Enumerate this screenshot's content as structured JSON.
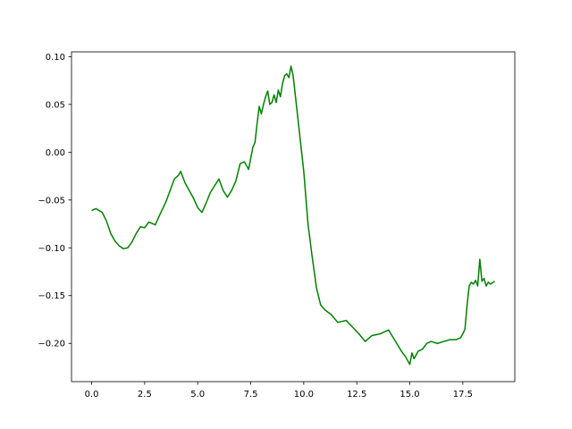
{
  "chart_data": {
    "type": "line",
    "title": "",
    "xlabel": "",
    "ylabel": "",
    "xlim": [
      -0.95,
      19.95
    ],
    "ylim": [
      -0.24,
      0.105
    ],
    "grid": false,
    "x_ticks": [
      {
        "value": 0.0,
        "label": "0.0"
      },
      {
        "value": 2.5,
        "label": "2.5"
      },
      {
        "value": 5.0,
        "label": "5.0"
      },
      {
        "value": 7.5,
        "label": "7.5"
      },
      {
        "value": 10.0,
        "label": "10.0"
      },
      {
        "value": 12.5,
        "label": "12.5"
      },
      {
        "value": 15.0,
        "label": "15.0"
      },
      {
        "value": 17.5,
        "label": "17.5"
      }
    ],
    "y_ticks": [
      {
        "value": 0.1,
        "label": "0.10"
      },
      {
        "value": 0.05,
        "label": "0.05"
      },
      {
        "value": 0.0,
        "label": "0.00"
      },
      {
        "value": -0.05,
        "label": "−0.05"
      },
      {
        "value": -0.1,
        "label": "−0.10"
      },
      {
        "value": -0.15,
        "label": "−0.15"
      },
      {
        "value": -0.2,
        "label": "−0.20"
      }
    ],
    "series": [
      {
        "color": "#008000",
        "x": [
          0.0,
          0.2,
          0.5,
          0.7,
          0.9,
          1.1,
          1.3,
          1.5,
          1.7,
          1.9,
          2.1,
          2.3,
          2.5,
          2.7,
          3.0,
          3.2,
          3.5,
          3.7,
          3.9,
          4.1,
          4.2,
          4.4,
          4.6,
          4.8,
          5.0,
          5.2,
          5.4,
          5.6,
          5.8,
          6.0,
          6.2,
          6.4,
          6.6,
          6.8,
          7.0,
          7.2,
          7.4,
          7.6,
          7.7,
          7.8,
          7.9,
          8.0,
          8.1,
          8.2,
          8.3,
          8.4,
          8.5,
          8.6,
          8.7,
          8.8,
          8.9,
          9.0,
          9.1,
          9.2,
          9.3,
          9.4,
          9.5,
          9.6,
          9.8,
          10.0,
          10.2,
          10.4,
          10.6,
          10.8,
          11.0,
          11.3,
          11.6,
          12.0,
          12.3,
          12.6,
          12.9,
          13.2,
          13.6,
          14.0,
          14.3,
          14.6,
          14.8,
          15.0,
          15.1,
          15.2,
          15.4,
          15.6,
          15.8,
          16.0,
          16.3,
          16.6,
          16.9,
          17.2,
          17.4,
          17.5,
          17.6,
          17.7,
          17.8,
          17.9,
          18.0,
          18.1,
          18.2,
          18.3,
          18.4,
          18.5,
          18.6,
          18.7,
          18.8,
          19.0
        ],
        "y": [
          -0.061,
          -0.059,
          -0.063,
          -0.072,
          -0.085,
          -0.093,
          -0.098,
          -0.101,
          -0.1,
          -0.094,
          -0.085,
          -0.078,
          -0.079,
          -0.073,
          -0.076,
          -0.066,
          -0.052,
          -0.04,
          -0.028,
          -0.024,
          -0.02,
          -0.032,
          -0.04,
          -0.048,
          -0.058,
          -0.063,
          -0.053,
          -0.042,
          -0.035,
          -0.028,
          -0.04,
          -0.047,
          -0.04,
          -0.03,
          -0.012,
          -0.01,
          -0.018,
          0.005,
          0.01,
          0.03,
          0.048,
          0.04,
          0.05,
          0.058,
          0.064,
          0.05,
          0.052,
          0.06,
          0.052,
          0.065,
          0.058,
          0.072,
          0.08,
          0.082,
          0.078,
          0.09,
          0.08,
          0.06,
          0.02,
          -0.02,
          -0.075,
          -0.11,
          -0.142,
          -0.16,
          -0.165,
          -0.17,
          -0.178,
          -0.176,
          -0.183,
          -0.19,
          -0.198,
          -0.192,
          -0.19,
          -0.186,
          -0.197,
          -0.208,
          -0.214,
          -0.222,
          -0.21,
          -0.216,
          -0.208,
          -0.206,
          -0.2,
          -0.198,
          -0.2,
          -0.198,
          -0.196,
          -0.196,
          -0.194,
          -0.19,
          -0.185,
          -0.16,
          -0.14,
          -0.136,
          -0.138,
          -0.134,
          -0.14,
          -0.112,
          -0.135,
          -0.132,
          -0.14,
          -0.136,
          -0.138,
          -0.135
        ]
      }
    ]
  }
}
